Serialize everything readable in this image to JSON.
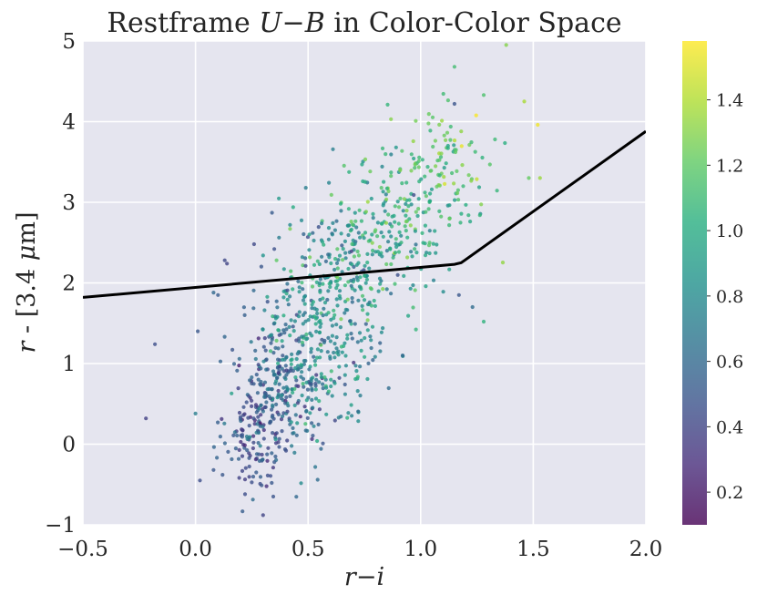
{
  "chart_data": {
    "type": "scatter",
    "title": "Restframe U−B in Color-Color Space",
    "title_parts": [
      {
        "text": "Restframe ",
        "italic": false
      },
      {
        "text": "U",
        "italic": true
      },
      {
        "text": "−",
        "italic": false
      },
      {
        "text": "B",
        "italic": true
      },
      {
        "text": " in Color-Color Space",
        "italic": false
      }
    ],
    "xlabel": "r−i",
    "xlabel_parts": [
      {
        "text": "r",
        "italic": true
      },
      {
        "text": "−",
        "italic": false
      },
      {
        "text": "i",
        "italic": true
      }
    ],
    "ylabel": "r - [3.4 μm]",
    "ylabel_parts": [
      {
        "text": "r",
        "italic": true
      },
      {
        "text": " - [3.4 ",
        "italic": false
      },
      {
        "text": "μ",
        "italic": true
      },
      {
        "text": "m]",
        "italic": false
      }
    ],
    "xlim": [
      -0.5,
      2.0
    ],
    "ylim": [
      -1,
      5
    ],
    "xticks": [
      -0.5,
      0.0,
      0.5,
      1.0,
      1.5,
      2.0
    ],
    "xtick_labels": [
      "−0.5",
      "0.0",
      "0.5",
      "1.0",
      "1.5",
      "2.0"
    ],
    "yticks": [
      -1,
      0,
      1,
      2,
      3,
      4,
      5
    ],
    "ytick_labels": [
      "−1",
      "0",
      "1",
      "2",
      "3",
      "4",
      "5"
    ],
    "grid": true,
    "background": "#e5e5ef",
    "colorbar": {
      "colormap": "viridis",
      "range": [
        0.1,
        1.58
      ],
      "ticks": [
        0.2,
        0.4,
        0.6,
        0.8,
        1.0,
        1.2,
        1.4
      ],
      "tick_labels": [
        "0.2",
        "0.4",
        "0.6",
        "0.8",
        "1.0",
        "1.2",
        "1.4"
      ]
    },
    "selection_line": {
      "color": "#000000",
      "x": [
        -0.5,
        1.15,
        1.18,
        2.0
      ],
      "y": [
        1.82,
        2.23,
        2.25,
        3.88
      ]
    },
    "points": [
      {
        "x": -0.22,
        "y": 0.32,
        "c": 0.38
      },
      {
        "x": -0.18,
        "y": 1.24,
        "c": 0.45
      },
      {
        "x": 0.0,
        "y": 0.38,
        "c": 0.72
      },
      {
        "x": 0.02,
        "y": -0.45,
        "c": 0.45
      },
      {
        "x": 0.01,
        "y": 1.4,
        "c": 0.5
      },
      {
        "x": 0.08,
        "y": -0.32,
        "c": 0.5
      },
      {
        "x": 0.12,
        "y": -0.38,
        "c": 0.5
      },
      {
        "x": 0.08,
        "y": 1.88,
        "c": 0.6
      },
      {
        "x": 0.1,
        "y": 1.85,
        "c": 0.52
      },
      {
        "x": 0.13,
        "y": 2.28,
        "c": 0.42
      },
      {
        "x": 0.14,
        "y": 2.24,
        "c": 0.4
      },
      {
        "x": 0.26,
        "y": 2.48,
        "c": 0.42
      },
      {
        "x": 0.35,
        "y": 2.42,
        "c": 0.46
      },
      {
        "x": 0.34,
        "y": 2.87,
        "c": 0.52
      },
      {
        "x": 0.49,
        "y": 3.18,
        "c": 0.72
      },
      {
        "x": 0.42,
        "y": 2.72,
        "c": 0.8
      },
      {
        "x": 0.3,
        "y": 2.34,
        "c": 0.85
      },
      {
        "x": 0.36,
        "y": 2.28,
        "c": 1.2
      },
      {
        "x": 0.22,
        "y": -0.62,
        "c": 0.45
      },
      {
        "x": 0.3,
        "y": -0.88,
        "c": 0.4
      },
      {
        "x": 0.27,
        "y": -0.35,
        "c": 0.52
      },
      {
        "x": 0.49,
        "y": 0.17,
        "c": 0.62
      },
      {
        "x": 0.54,
        "y": 0.04,
        "c": 1.0
      },
      {
        "x": 0.92,
        "y": 1.1,
        "c": 0.6
      },
      {
        "x": 1.17,
        "y": 1.85,
        "c": 0.5
      },
      {
        "x": 1.23,
        "y": 1.7,
        "c": 0.62
      },
      {
        "x": 1.28,
        "y": 1.52,
        "c": 1.05
      },
      {
        "x": 1.15,
        "y": 4.22,
        "c": 0.48
      },
      {
        "x": 1.15,
        "y": 4.68,
        "c": 1.12
      },
      {
        "x": 1.38,
        "y": 4.95,
        "c": 1.3
      },
      {
        "x": 1.28,
        "y": 4.33,
        "c": 1.15
      },
      {
        "x": 1.46,
        "y": 4.25,
        "c": 1.38
      },
      {
        "x": 1.52,
        "y": 3.96,
        "c": 1.55
      },
      {
        "x": 1.48,
        "y": 3.3,
        "c": 1.22
      },
      {
        "x": 1.53,
        "y": 3.3,
        "c": 1.35
      },
      {
        "x": 1.33,
        "y": 3.78,
        "c": 1.1
      }
    ],
    "clusters": [
      {
        "cx": 0.28,
        "cy": 0.15,
        "sx": 0.07,
        "sy": 0.45,
        "n": 150,
        "c": 0.45,
        "cs": 0.12
      },
      {
        "cx": 0.4,
        "cy": 0.8,
        "sx": 0.1,
        "sy": 0.5,
        "n": 220,
        "c": 0.6,
        "cs": 0.13
      },
      {
        "cx": 0.58,
        "cy": 1.35,
        "sx": 0.12,
        "sy": 0.55,
        "n": 230,
        "c": 0.85,
        "cs": 0.15
      },
      {
        "cx": 0.68,
        "cy": 2.2,
        "sx": 0.14,
        "sy": 0.5,
        "n": 190,
        "c": 0.85,
        "cs": 0.18
      },
      {
        "cx": 0.9,
        "cy": 2.8,
        "sx": 0.14,
        "sy": 0.45,
        "n": 160,
        "c": 1.05,
        "cs": 0.15
      },
      {
        "cx": 1.1,
        "cy": 3.4,
        "sx": 0.12,
        "sy": 0.35,
        "n": 90,
        "c": 1.2,
        "cs": 0.12
      }
    ]
  }
}
